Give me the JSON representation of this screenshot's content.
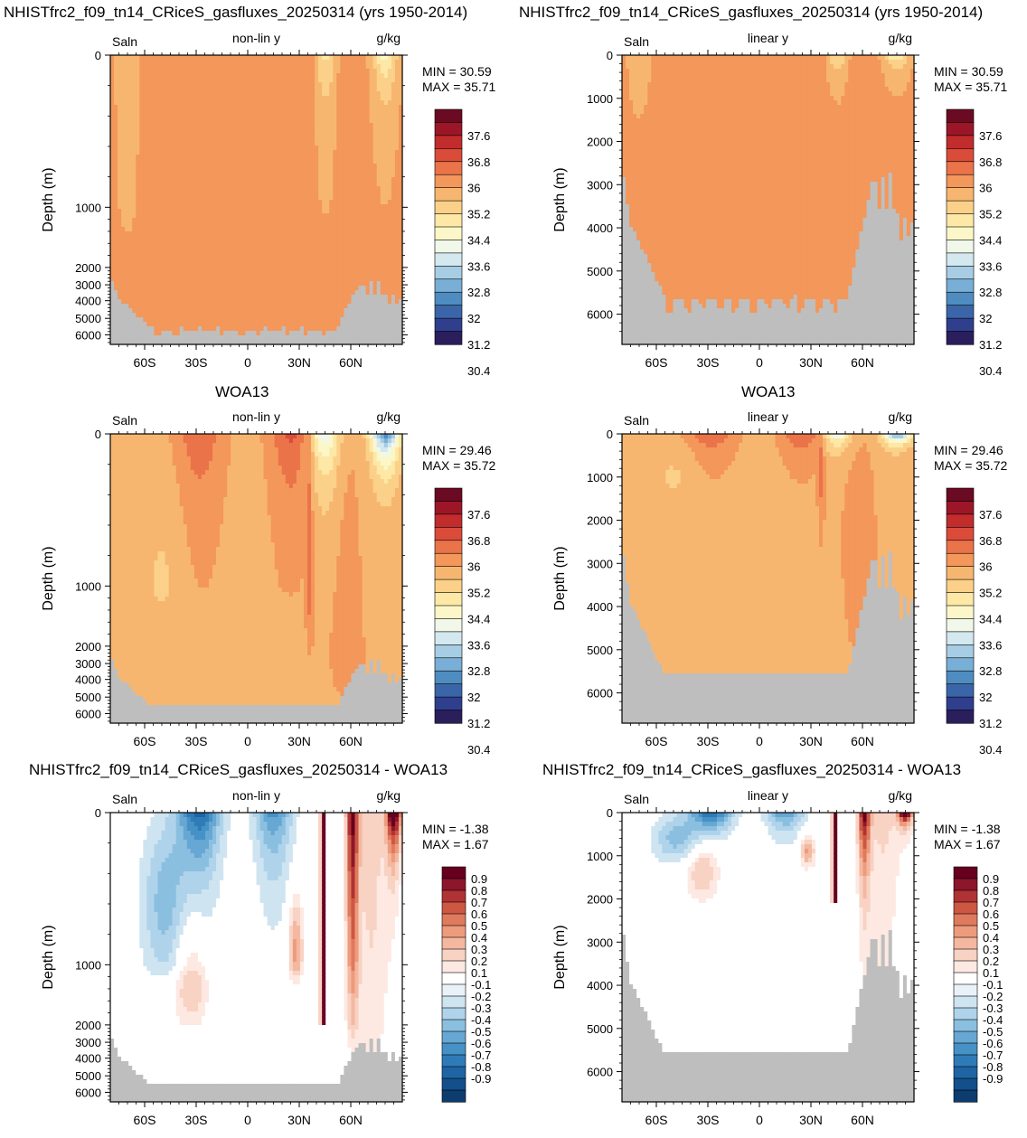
{
  "row_titles": [
    {
      "left": "NHISTfrc2_f09_tn14_CRiceS_gasfluxes_20250314 (yrs 1950-2014)",
      "right": "NHISTfrc2_f09_tn14_CRiceS_gasfluxes_20250314 (yrs 1950-2014)"
    },
    {
      "left": "WOA13",
      "right": "WOA13"
    },
    {
      "left": "NHISTfrc2_f09_tn14_CRiceS_gasfluxes_20250314 - WOA13",
      "right": "NHISTfrc2_f09_tn14_CRiceS_gasfluxes_20250314 - WOA13"
    }
  ],
  "colors": {
    "land": "#bebebe",
    "salinity_scale": [
      "#2a1e5c",
      "#2f3f8e",
      "#3a66a9",
      "#4f8cc0",
      "#79afd6",
      "#a6cde3",
      "#d4e8ef",
      "#f1f8e9",
      "#fcf7c8",
      "#fde8a6",
      "#fbd18a",
      "#f7b670",
      "#f3975a",
      "#eb7349",
      "#db4b3a",
      "#c22c2c",
      "#9c1628",
      "#6b0a23"
    ],
    "diff_scale": [
      "#0d3c6e",
      "#134f8a",
      "#1f64a4",
      "#2f7bb8",
      "#4691c6",
      "#67a7d3",
      "#8bbfe0",
      "#afd3ea",
      "#cfe4f1",
      "#e8f2f8",
      "#ffffff",
      "#fde9e2",
      "#f8d2c3",
      "#f4b8a0",
      "#ed9b7c",
      "#e07a5c",
      "#cc5743",
      "#b03234",
      "#8c162a",
      "#67001f"
    ]
  },
  "chart_data": [
    {
      "id": "model-nonlin",
      "type": "heatmap",
      "title": "",
      "left_label": "Saln",
      "center_label": "non-lin y",
      "right_label": "g/kg",
      "ylabel": "Depth (m)",
      "y_scale": "non-linear",
      "yticks": [
        "0",
        "1000",
        "2000",
        "3000",
        "4000",
        "5000",
        "6000"
      ],
      "xticks": [
        "60S",
        "30S",
        "0",
        "30N",
        "60N"
      ],
      "min_label": "MIN = 30.59",
      "max_label": "MAX = 35.71",
      "colorbar_labels": [
        "37.6",
        "36.8",
        "36",
        "35.2",
        "34.4",
        "33.6",
        "32.8",
        "32",
        "31.2",
        "30.4"
      ],
      "colorbar": "salinity",
      "field": "model"
    },
    {
      "id": "model-lin",
      "type": "heatmap",
      "title": "",
      "left_label": "Saln",
      "center_label": "linear y",
      "right_label": "g/kg",
      "ylabel": "Depth (m)",
      "y_scale": "linear",
      "yticks": [
        "0",
        "1000",
        "2000",
        "3000",
        "4000",
        "5000",
        "6000"
      ],
      "xticks": [
        "60S",
        "30S",
        "0",
        "30N",
        "60N"
      ],
      "min_label": "MIN = 30.59",
      "max_label": "MAX = 35.71",
      "colorbar_labels": [
        "37.6",
        "36.8",
        "36",
        "35.2",
        "34.4",
        "33.6",
        "32.8",
        "32",
        "31.2",
        "30.4"
      ],
      "colorbar": "salinity",
      "field": "model"
    },
    {
      "id": "obs-nonlin",
      "type": "heatmap",
      "title": "",
      "left_label": "Saln",
      "center_label": "non-lin y",
      "right_label": "g/kg",
      "ylabel": "Depth (m)",
      "y_scale": "non-linear",
      "yticks": [
        "0",
        "1000",
        "2000",
        "3000",
        "4000",
        "5000",
        "6000"
      ],
      "xticks": [
        "60S",
        "30S",
        "0",
        "30N",
        "60N"
      ],
      "min_label": "MIN = 29.46",
      "max_label": "MAX = 35.72",
      "colorbar_labels": [
        "37.6",
        "36.8",
        "36",
        "35.2",
        "34.4",
        "33.6",
        "32.8",
        "32",
        "31.2",
        "30.4"
      ],
      "colorbar": "salinity",
      "field": "obs"
    },
    {
      "id": "obs-lin",
      "type": "heatmap",
      "title": "",
      "left_label": "Saln",
      "center_label": "linear y",
      "right_label": "g/kg",
      "ylabel": "Depth (m)",
      "y_scale": "linear",
      "yticks": [
        "0",
        "1000",
        "2000",
        "3000",
        "4000",
        "5000",
        "6000"
      ],
      "xticks": [
        "60S",
        "30S",
        "0",
        "30N",
        "60N"
      ],
      "min_label": "MIN = 29.46",
      "max_label": "MAX = 35.72",
      "colorbar_labels": [
        "37.6",
        "36.8",
        "36",
        "35.2",
        "34.4",
        "33.6",
        "32.8",
        "32",
        "31.2",
        "30.4"
      ],
      "colorbar": "salinity",
      "field": "obs"
    },
    {
      "id": "diff-nonlin",
      "type": "heatmap",
      "title": "",
      "left_label": "Saln",
      "center_label": "non-lin y",
      "right_label": "g/kg",
      "ylabel": "Depth (m)",
      "y_scale": "non-linear",
      "yticks": [
        "0",
        "1000",
        "2000",
        "3000",
        "4000",
        "5000",
        "6000"
      ],
      "xticks": [
        "60S",
        "30S",
        "0",
        "30N",
        "60N"
      ],
      "min_label": "MIN = -1.38",
      "max_label": "MAX = 1.67",
      "colorbar_labels": [
        "0.9",
        "0.8",
        "0.7",
        "0.6",
        "0.5",
        "0.4",
        "0.3",
        "0.2",
        "0.1",
        "-0.1",
        "-0.2",
        "-0.3",
        "-0.4",
        "-0.5",
        "-0.6",
        "-0.7",
        "-0.8",
        "-0.9"
      ],
      "colorbar": "diff",
      "field": "diff"
    },
    {
      "id": "diff-lin",
      "type": "heatmap",
      "title": "",
      "left_label": "Saln",
      "center_label": "linear y",
      "right_label": "g/kg",
      "ylabel": "Depth (m)",
      "y_scale": "linear",
      "yticks": [
        "0",
        "1000",
        "2000",
        "3000",
        "4000",
        "5000",
        "6000"
      ],
      "xticks": [
        "60S",
        "30S",
        "0",
        "30N",
        "60N"
      ],
      "min_label": "MIN = -1.38",
      "max_label": "MAX = 1.67",
      "colorbar_labels": [
        "0.9",
        "0.8",
        "0.7",
        "0.6",
        "0.5",
        "0.4",
        "0.3",
        "0.2",
        "0.1",
        "-0.1",
        "-0.2",
        "-0.3",
        "-0.4",
        "-0.5",
        "-0.6",
        "-0.7",
        "-0.8",
        "-0.9"
      ],
      "colorbar": "diff",
      "field": "diff"
    }
  ]
}
